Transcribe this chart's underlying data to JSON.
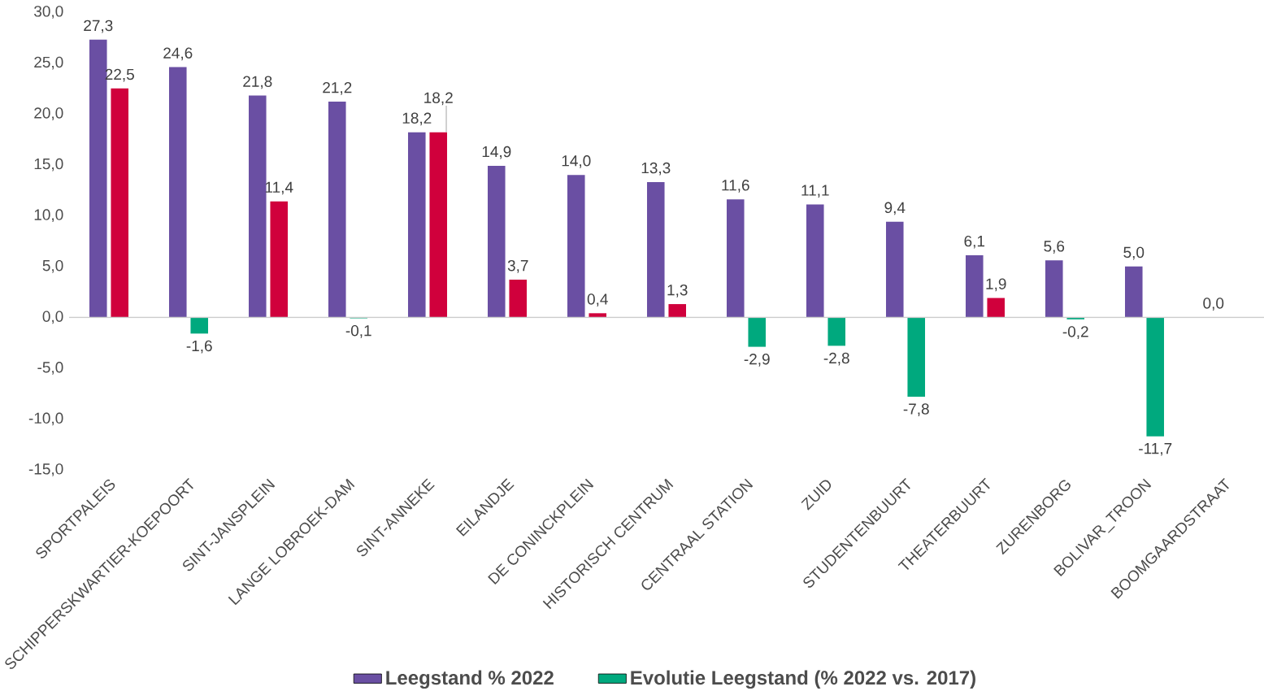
{
  "chart_data": {
    "type": "bar",
    "categories": [
      "SPORTPALEIS",
      "SCHIPPERSKWARTIER-KOEPOORT",
      "SINT-JANSPLEIN",
      "LANGE LOBROEK-DAM",
      "SINT-ANNEKE",
      "EILANDJE",
      "DE CONINCKPLEIN",
      "HISTORISCH CENTRUM",
      "CENTRAAL STATION",
      "ZUID",
      "STUDENTENBUURT",
      "THEATERBUURT",
      "ZURENBORG",
      "BOLIVAR_TROON",
      "BOOMGAARDSTRAAT"
    ],
    "series": [
      {
        "name": "Leegstand % 2022",
        "color": "#6a4fa3",
        "values": [
          27.3,
          24.6,
          21.8,
          21.2,
          18.2,
          14.9,
          14.0,
          13.3,
          11.6,
          11.1,
          9.4,
          6.1,
          5.6,
          5.0,
          0.0
        ],
        "value_labels": [
          "27,3",
          "24,6",
          "21,8",
          "21,2",
          "18,2",
          "14,9",
          "14,0",
          "13,3",
          "11,6",
          "11,1",
          "9,4",
          "6,1",
          "5,6",
          "5,0",
          "0,0"
        ]
      },
      {
        "name": "Evolutie Leegstand (% 2022 vs. 2017)",
        "color": "#00a97e",
        "colors": [
          "#d0003c",
          "#00a97e",
          "#d0003c",
          "#00a97e",
          "#d0003c",
          "#d0003c",
          "#d0003c",
          "#d0003c",
          "#00a97e",
          "#00a97e",
          "#00a97e",
          "#d0003c",
          "#00a97e",
          "#00a97e",
          null
        ],
        "values": [
          22.5,
          -1.6,
          11.4,
          -0.1,
          18.2,
          3.7,
          0.4,
          1.3,
          -2.9,
          -2.8,
          -7.8,
          1.9,
          -0.2,
          -11.7,
          null
        ],
        "value_labels": [
          "22,5",
          "-1,6",
          "11,4",
          "-0,1",
          "18,2",
          "3,7",
          "0,4",
          "1,3",
          "-2,9",
          "-2,8",
          "-7,8",
          "1,9",
          "-0,2",
          "-11,7",
          null
        ]
      }
    ],
    "ylim": [
      -15,
      30
    ],
    "yticks": [
      {
        "value": -15,
        "label": "-15,0"
      },
      {
        "value": -10,
        "label": "-10,0"
      },
      {
        "value": -5,
        "label": "-5,0"
      },
      {
        "value": 0,
        "label": "0,0"
      },
      {
        "value": 5,
        "label": "5,0"
      },
      {
        "value": 10,
        "label": "10,0"
      },
      {
        "value": 15,
        "label": "15,0"
      },
      {
        "value": 20,
        "label": "20,0"
      },
      {
        "value": 25,
        "label": "25,0"
      },
      {
        "value": 30,
        "label": "30,0"
      }
    ],
    "legend": "bottom"
  }
}
